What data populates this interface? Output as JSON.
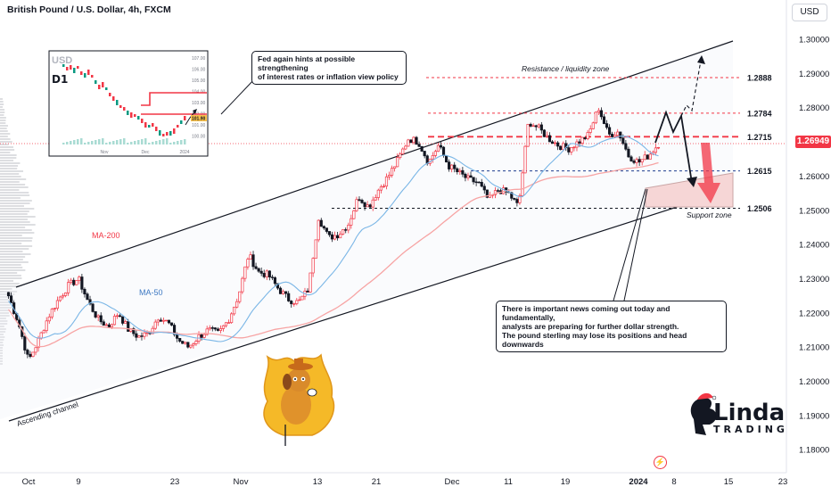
{
  "header": {
    "title": "British Pound / U.S. Dollar, 4h, FXCM",
    "currency_button": "USD",
    "current_price": "1.26949"
  },
  "chart_data": {
    "type": "candlestick",
    "symbol": "GBP/USD",
    "timeframe": "4h",
    "price_axis_ticks": [
      "1.30000",
      "1.29000",
      "1.28000",
      "1.27000",
      "1.26000",
      "1.25000",
      "1.24000",
      "1.23000",
      "1.22000",
      "1.21000",
      "1.20000",
      "1.19000",
      "1.18000"
    ],
    "time_axis_ticks": [
      "Oct",
      "9",
      "23",
      "Nov",
      "13",
      "21",
      "Dec",
      "11",
      "19",
      "2024",
      "8",
      "15",
      "23"
    ],
    "ylim": [
      1.174,
      1.305
    ],
    "close_path": [
      [
        "Oct",
        1.225
      ],
      [
        "Oct 3",
        1.217
      ],
      [
        "Oct 4",
        1.206
      ],
      [
        "Oct 5",
        1.212
      ],
      [
        "Oct 6",
        1.219
      ],
      [
        "9",
        1.224
      ],
      [
        "Oct 10",
        1.228
      ],
      [
        "Oct 11",
        1.23
      ],
      [
        "Oct 12",
        1.223
      ],
      [
        "Oct 13",
        1.218
      ],
      [
        "Oct 16",
        1.216
      ],
      [
        "Oct 17",
        1.22
      ],
      [
        "Oct 18",
        1.215
      ],
      [
        "Oct 19",
        1.213
      ],
      [
        "Oct 20",
        1.214
      ],
      [
        "23",
        1.219
      ],
      [
        "Oct 24",
        1.217
      ],
      [
        "Oct 25",
        1.212
      ],
      [
        "Oct 26",
        1.21
      ],
      [
        "Oct 27",
        1.213
      ],
      [
        "Oct 30",
        1.215
      ],
      [
        "Oct 31",
        1.214
      ],
      [
        "Nov",
        1.218
      ],
      [
        "Nov 2",
        1.225
      ],
      [
        "Nov 3",
        1.237
      ],
      [
        "Nov 6",
        1.232
      ],
      [
        "Nov 7",
        1.231
      ],
      [
        "Nov 8",
        1.227
      ],
      [
        "Nov 9",
        1.224
      ],
      [
        "Nov 10",
        1.223
      ],
      [
        "13",
        1.227
      ],
      [
        "Nov 14",
        1.248
      ],
      [
        "Nov 15",
        1.242
      ],
      [
        "Nov 16",
        1.243
      ],
      [
        "Nov 17",
        1.246
      ],
      [
        "21",
        1.254
      ],
      [
        "Nov 22",
        1.251
      ],
      [
        "Nov 23",
        1.256
      ],
      [
        "Nov 24",
        1.26
      ],
      [
        "Nov 27",
        1.265
      ],
      [
        "Nov 28",
        1.271
      ],
      [
        "Nov 29",
        1.27
      ],
      [
        "Nov 30",
        1.264
      ],
      [
        "Dec",
        1.269
      ],
      [
        "Dec 4",
        1.263
      ],
      [
        "Dec 5",
        1.261
      ],
      [
        "Dec 6",
        1.259
      ],
      [
        "Dec 7",
        1.258
      ],
      [
        "Dec 8",
        1.253
      ],
      [
        "11",
        1.256
      ],
      [
        "Dec 12",
        1.255
      ],
      [
        "Dec 13",
        1.251
      ],
      [
        "Dec 14",
        1.276
      ],
      [
        "Dec 15",
        1.274
      ],
      [
        "19",
        1.271
      ],
      [
        "Dec 20",
        1.269
      ],
      [
        "Dec 21",
        1.268
      ],
      [
        "Dec 22",
        1.27
      ],
      [
        "Dec 26",
        1.272
      ],
      [
        "Dec 27",
        1.28
      ],
      [
        "Dec 28",
        1.272
      ],
      [
        "Dec 29",
        1.273
      ],
      [
        "2024",
        1.266
      ],
      [
        "Jan 3",
        1.264
      ],
      [
        "Jan 4",
        1.266
      ],
      [
        "Jan 5",
        1.2694
      ]
    ],
    "series": [
      {
        "name": "MA-200",
        "color": "#f7a4a4"
      },
      {
        "name": "MA-50",
        "color": "#7ab6e6"
      }
    ],
    "levels": [
      {
        "label": "1.2888",
        "value": 1.2888,
        "style": "dashed",
        "color": "#f23645"
      },
      {
        "label": "1.2784",
        "value": 1.2784,
        "style": "dashed",
        "color": "#f23645"
      },
      {
        "label": "1.2715",
        "value": 1.2715,
        "style": "dashed-bold",
        "color": "#f23645"
      },
      {
        "label": "1.2615",
        "value": 1.2615,
        "style": "dashed",
        "color": "#1e3d8f"
      },
      {
        "label": "1.2506",
        "value": 1.2506,
        "style": "dashed",
        "color": "#131722"
      }
    ],
    "annotations": {
      "resistance": "Resistance / liquidity zone",
      "support": "Support zone",
      "channel": "Ascending channel",
      "ma200_label": "MA-200",
      "ma50_label": "MA-50"
    },
    "inset": {
      "symbol": "USD",
      "badge": "D1",
      "ticks": [
        "107.00",
        "106.00",
        "105.00",
        "104.00",
        "103.00",
        "102.00",
        "101.00",
        "100.00"
      ],
      "x_ticks": [
        "Nov",
        "Dec",
        "2024"
      ],
      "price_label": "101.90"
    }
  },
  "notes": {
    "fed": [
      "Fed again hints at possible strengthening",
      "of interest rates or inflation view policy"
    ],
    "news": [
      "There is important news coming out today and fundamentally,",
      "analysts are preparing for further dollar strength.",
      "The pound sterling may lose its positions and head downwards"
    ]
  },
  "brand": {
    "name_top": "Linda",
    "name_bottom": "TRADING"
  },
  "colors": {
    "up": "#089981",
    "down": "#131722",
    "accent_red": "#f23645",
    "support_fill": "#f6d6d6"
  }
}
